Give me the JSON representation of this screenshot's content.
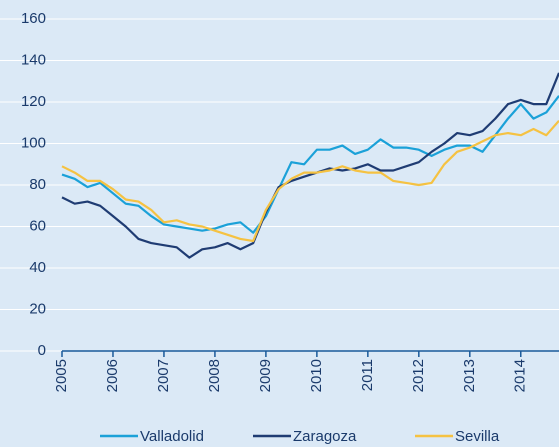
{
  "chart_data": {
    "type": "line",
    "x": [
      2005,
      2005.25,
      2005.5,
      2005.75,
      2006,
      2006.25,
      2006.5,
      2006.75,
      2007,
      2007.25,
      2007.5,
      2007.75,
      2008,
      2008.25,
      2008.5,
      2008.75,
      2009,
      2009.25,
      2009.5,
      2009.75,
      2010,
      2010.25,
      2010.5,
      2010.75,
      2011,
      2011.25,
      2011.5,
      2011.75,
      2012,
      2012.25,
      2012.5,
      2012.75,
      2013,
      2013.25,
      2013.5,
      2013.75,
      2014,
      2014.25,
      2014.5,
      2014.75
    ],
    "series": [
      {
        "name": "Valladolid",
        "color": "#1ba1d8",
        "values": [
          85,
          83,
          79,
          81,
          76,
          71,
          70,
          65,
          61,
          60,
          59,
          58,
          59,
          61,
          62,
          57,
          65,
          78,
          91,
          90,
          97,
          97,
          99,
          95,
          97,
          102,
          98,
          98,
          97,
          94,
          97,
          99,
          99,
          96,
          104,
          112,
          119,
          112,
          115,
          123
        ]
      },
      {
        "name": "Zaragoza",
        "color": "#1f3c73",
        "values": [
          74,
          71,
          72,
          70,
          65,
          60,
          54,
          52,
          51,
          50,
          45,
          49,
          50,
          52,
          49,
          52,
          67,
          79,
          82,
          84,
          86,
          88,
          87,
          88,
          90,
          87,
          87,
          89,
          91,
          96,
          100,
          105,
          104,
          106,
          112,
          119,
          121,
          119,
          119,
          134
        ]
      },
      {
        "name": "Sevilla",
        "color": "#f5c242",
        "values": [
          89,
          86,
          82,
          82,
          78,
          73,
          72,
          68,
          62,
          63,
          61,
          60,
          58,
          56,
          54,
          53,
          68,
          78,
          83,
          86,
          86,
          87,
          89,
          87,
          86,
          86,
          82,
          81,
          80,
          81,
          90,
          96,
          98,
          101,
          104,
          105,
          104,
          107,
          104,
          111
        ]
      }
    ],
    "xlim": [
      2005,
      2014.75
    ],
    "xticks": [
      2005,
      2006,
      2007,
      2008,
      2009,
      2010,
      2011,
      2012,
      2013,
      2014
    ],
    "ylim": [
      0,
      160
    ],
    "yticks": [
      0,
      20,
      40,
      60,
      80,
      100,
      120,
      140,
      160
    ],
    "grid": true,
    "legend": "bottom"
  }
}
